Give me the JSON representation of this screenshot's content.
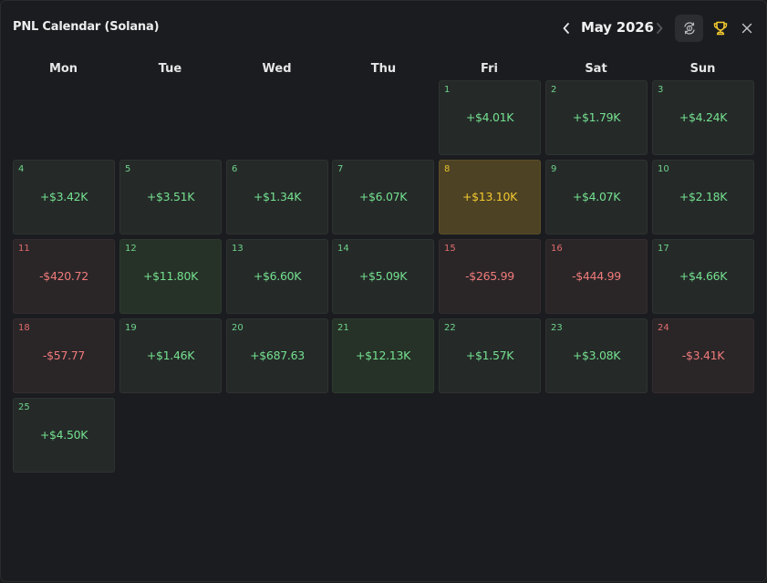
{
  "header": {
    "title": "PNL Calendar (Solana)",
    "month": "May 2026"
  },
  "icons": {
    "prev": "chevron-left-icon",
    "next": "chevron-right-icon",
    "toggle": "currency-toggle-icon",
    "trophy": "trophy-icon",
    "close": "close-icon"
  },
  "colors": {
    "profit": "#74e08f",
    "loss": "#f07a7a",
    "best_day": "#f2c92e",
    "trophy": "#f2c92e"
  },
  "weekdays": [
    "Mon",
    "Tue",
    "Wed",
    "Thu",
    "Fri",
    "Sat",
    "Sun"
  ],
  "days": [
    {
      "day": "1",
      "pnl": "+$4.01K",
      "status": "profit"
    },
    {
      "day": "2",
      "pnl": "+$1.79K",
      "status": "profit"
    },
    {
      "day": "3",
      "pnl": "+$4.24K",
      "status": "profit"
    },
    {
      "day": "4",
      "pnl": "+$3.42K",
      "status": "profit"
    },
    {
      "day": "5",
      "pnl": "+$3.51K",
      "status": "profit"
    },
    {
      "day": "6",
      "pnl": "+$1.34K",
      "status": "profit"
    },
    {
      "day": "7",
      "pnl": "+$6.07K",
      "status": "profit"
    },
    {
      "day": "8",
      "pnl": "+$13.10K",
      "status": "top"
    },
    {
      "day": "9",
      "pnl": "+$4.07K",
      "status": "profit"
    },
    {
      "day": "10",
      "pnl": "+$2.18K",
      "status": "profit"
    },
    {
      "day": "11",
      "pnl": "-$420.72",
      "status": "loss"
    },
    {
      "day": "12",
      "pnl": "+$11.80K",
      "status": "big"
    },
    {
      "day": "13",
      "pnl": "+$6.60K",
      "status": "profit"
    },
    {
      "day": "14",
      "pnl": "+$5.09K",
      "status": "profit"
    },
    {
      "day": "15",
      "pnl": "-$265.99",
      "status": "loss"
    },
    {
      "day": "16",
      "pnl": "-$444.99",
      "status": "loss"
    },
    {
      "day": "17",
      "pnl": "+$4.66K",
      "status": "profit"
    },
    {
      "day": "18",
      "pnl": "-$57.77",
      "status": "loss"
    },
    {
      "day": "19",
      "pnl": "+$1.46K",
      "status": "profit"
    },
    {
      "day": "20",
      "pnl": "+$687.63",
      "status": "profit"
    },
    {
      "day": "21",
      "pnl": "+$12.13K",
      "status": "big"
    },
    {
      "day": "22",
      "pnl": "+$1.57K",
      "status": "profit"
    },
    {
      "day": "23",
      "pnl": "+$3.08K",
      "status": "profit"
    },
    {
      "day": "24",
      "pnl": "-$3.41K",
      "status": "loss"
    },
    {
      "day": "25",
      "pnl": "+$4.50K",
      "status": "profit"
    }
  ]
}
